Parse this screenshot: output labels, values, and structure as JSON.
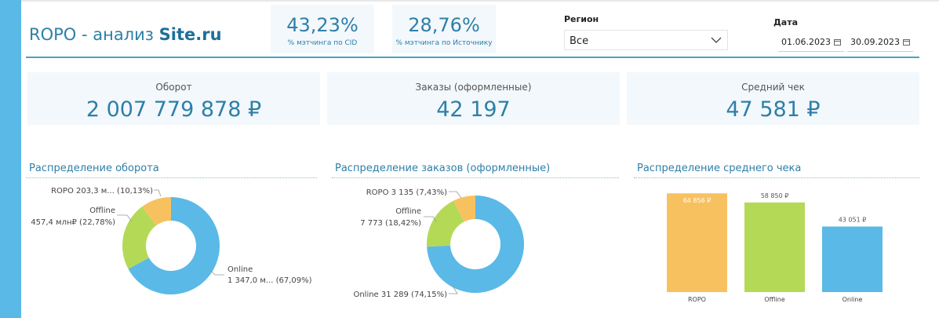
{
  "header": {
    "title_prefix": "ROPO - анализ ",
    "title_site": "Site.ru",
    "metric_cid": {
      "value": "43,23%",
      "label": "% мэтчинга по CID"
    },
    "metric_source": {
      "value": "28,76%",
      "label": "% мэтчинга по Источнику"
    },
    "region": {
      "label": "Регион",
      "value": "Все"
    },
    "date": {
      "label": "Дата",
      "from": "01.06.2023",
      "to": "30.09.2023"
    }
  },
  "kpis": [
    {
      "label": "Оборот",
      "value": "2 007 779 878 ₽"
    },
    {
      "label": "Заказы (оформленные)",
      "value": "42 197"
    },
    {
      "label": "Средний чек",
      "value": "47 581 ₽"
    }
  ],
  "colors": {
    "online": "#5ab9e6",
    "offline": "#b4d957",
    "ropo": "#f8c160",
    "accent": "#2e7fa8"
  },
  "chart_data": [
    {
      "type": "pie",
      "title": "Распределение оборота",
      "categories": [
        "Online",
        "Offline",
        "ROPO"
      ],
      "values": [
        67.09,
        22.78,
        10.13
      ],
      "labels": {
        "online_1": "Online",
        "online_2": "1 347,0 м... (67,09%)",
        "offline_1": "Offline",
        "offline_2": "457,4 млн₽ (22,78%)",
        "ropo_1": "ROPO 203,3 м... (10,13%)"
      }
    },
    {
      "type": "pie",
      "title": "Распределение заказов (оформленные)",
      "categories": [
        "Online",
        "Offline",
        "ROPO"
      ],
      "values": [
        74.15,
        18.42,
        7.43
      ],
      "labels": {
        "online_1": "Online 31 289 (74,15%)",
        "offline_1": "Offline",
        "offline_2": "7 773 (18,42%)",
        "ropo_1": "ROPO 3 135 (7,43%)"
      }
    },
    {
      "type": "bar",
      "title": "Распределение среднего чека",
      "categories": [
        "ROPO",
        "Offline",
        "Online"
      ],
      "values": [
        64856,
        58850,
        43051
      ],
      "value_labels": [
        "64 856 ₽",
        "58 850 ₽",
        "43 051 ₽"
      ],
      "ylim": [
        0,
        66000
      ]
    }
  ]
}
